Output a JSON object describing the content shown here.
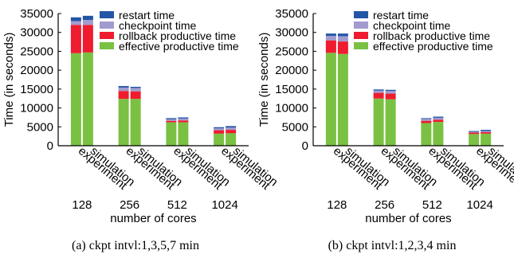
{
  "colors": {
    "restart": "#2255a6",
    "checkpoint": "#a29bcf",
    "rollback": "#ee1c2e",
    "effective": "#7ac143"
  },
  "chart_data": [
    {
      "type": "bar",
      "stacked": true,
      "caption": "(a) ckpt intvl:1,3,5,7 min",
      "xlabel": "number of cores",
      "ylabel": "Time (in seconds)",
      "ylim": [
        0,
        35000
      ],
      "yticks": [
        0,
        5000,
        10000,
        15000,
        20000,
        25000,
        30000,
        35000
      ],
      "groups": [
        "128",
        "256",
        "512",
        "1024"
      ],
      "bar_labels": [
        "experiment",
        "simulation"
      ],
      "legend": [
        "restart time",
        "checkpoint time",
        "rollback productive time",
        "effective productive time"
      ],
      "bars": [
        {
          "group": "128",
          "label": "experiment",
          "effective": 24500,
          "rollback": 7500,
          "checkpoint": 1000,
          "restart": 1000
        },
        {
          "group": "128",
          "label": "simulation",
          "effective": 24700,
          "rollback": 7300,
          "checkpoint": 1300,
          "restart": 1100
        },
        {
          "group": "256",
          "label": "experiment",
          "effective": 12400,
          "rollback": 2100,
          "checkpoint": 900,
          "restart": 400
        },
        {
          "group": "256",
          "label": "simulation",
          "effective": 12400,
          "rollback": 2000,
          "checkpoint": 900,
          "restart": 300
        },
        {
          "group": "512",
          "label": "experiment",
          "effective": 6200,
          "rollback": 400,
          "checkpoint": 400,
          "restart": 300
        },
        {
          "group": "512",
          "label": "simulation",
          "effective": 6200,
          "rollback": 500,
          "checkpoint": 500,
          "restart": 300
        },
        {
          "group": "1024",
          "label": "experiment",
          "effective": 3200,
          "rollback": 900,
          "checkpoint": 500,
          "restart": 300
        },
        {
          "group": "1024",
          "label": "simulation",
          "effective": 3300,
          "rollback": 900,
          "checkpoint": 600,
          "restart": 400
        }
      ]
    },
    {
      "type": "bar",
      "stacked": true,
      "caption": "(b) ckpt intvl:1,2,3,4 min",
      "xlabel": "number of cores",
      "ylabel": "Time (in seconds)",
      "ylim": [
        0,
        35000
      ],
      "yticks": [
        0,
        5000,
        10000,
        15000,
        20000,
        25000,
        30000,
        35000
      ],
      "groups": [
        "128",
        "256",
        "512",
        "1024"
      ],
      "bar_labels": [
        "experiment",
        "simulation"
      ],
      "legend": [
        "restart time",
        "checkpoint time",
        "rollback productive time",
        "effective productive time"
      ],
      "bars": [
        {
          "group": "128",
          "label": "experiment",
          "effective": 24600,
          "rollback": 3300,
          "checkpoint": 1200,
          "restart": 600
        },
        {
          "group": "128",
          "label": "simulation",
          "effective": 24300,
          "rollback": 3300,
          "checkpoint": 1400,
          "restart": 700
        },
        {
          "group": "256",
          "label": "experiment",
          "effective": 12500,
          "rollback": 1500,
          "checkpoint": 600,
          "restart": 300
        },
        {
          "group": "256",
          "label": "simulation",
          "effective": 12300,
          "rollback": 1500,
          "checkpoint": 700,
          "restart": 300
        },
        {
          "group": "512",
          "label": "experiment",
          "effective": 6000,
          "rollback": 600,
          "checkpoint": 500,
          "restart": 200
        },
        {
          "group": "512",
          "label": "simulation",
          "effective": 6300,
          "rollback": 600,
          "checkpoint": 500,
          "restart": 300
        },
        {
          "group": "1024",
          "label": "experiment",
          "effective": 3100,
          "rollback": 400,
          "checkpoint": 200,
          "restart": 200
        },
        {
          "group": "1024",
          "label": "simulation",
          "effective": 3200,
          "rollback": 400,
          "checkpoint": 300,
          "restart": 300
        }
      ]
    }
  ]
}
